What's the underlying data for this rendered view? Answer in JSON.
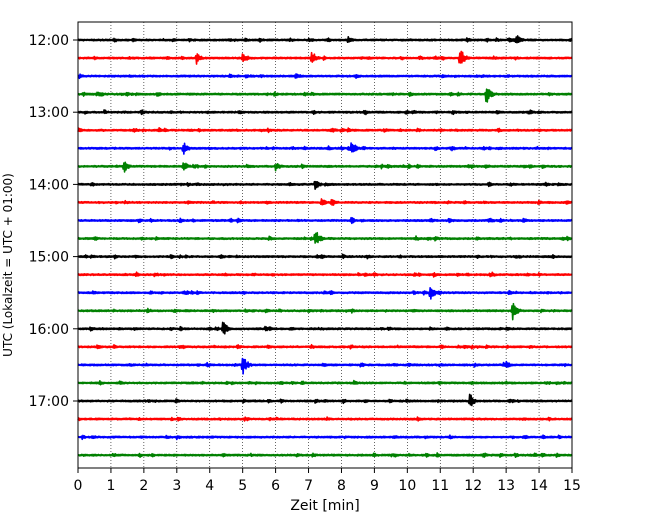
{
  "chart_data": {
    "type": "line",
    "title": "",
    "xlabel": "Zeit  [min]",
    "ylabel": "UTC (Lokalzeit = UTC + 01:00)",
    "xlim": [
      0,
      15
    ],
    "x_ticks": [
      0,
      1,
      2,
      3,
      4,
      5,
      6,
      7,
      8,
      9,
      10,
      11,
      12,
      13,
      14,
      15
    ],
    "x_tick_labels": [
      "0",
      "1",
      "2",
      "3",
      "4",
      "5",
      "6",
      "7",
      "8",
      "9",
      "10",
      "11",
      "12",
      "13",
      "14",
      "15"
    ],
    "y_tick_labels": [
      "12:00",
      "13:00",
      "14:00",
      "15:00",
      "16:00",
      "17:00"
    ],
    "grid": "x-dotted",
    "series_colors": [
      "#000000",
      "#ff0000",
      "#0000ff",
      "#008000"
    ],
    "traces": [
      {
        "start": "12:00",
        "color": "#000000",
        "events": [
          {
            "min": 13.3,
            "amp": 1.0
          },
          {
            "min": 8.2,
            "amp": 0.5
          },
          {
            "min": 1.1,
            "amp": 0.35
          }
        ]
      },
      {
        "start": "12:15",
        "color": "#ff0000",
        "events": [
          {
            "min": 11.6,
            "amp": 1.6
          },
          {
            "min": 7.1,
            "amp": 1.1
          },
          {
            "min": 3.6,
            "amp": 0.9
          },
          {
            "min": 5.0,
            "amp": 0.7
          }
        ]
      },
      {
        "start": "12:30",
        "color": "#0000ff",
        "events": [
          {
            "min": 6.6,
            "amp": 0.4
          }
        ]
      },
      {
        "start": "12:45",
        "color": "#008000",
        "events": [
          {
            "min": 12.4,
            "amp": 1.7
          }
        ]
      },
      {
        "start": "13:00",
        "color": "#000000",
        "events": [
          {
            "min": 8.7,
            "amp": 0.55
          },
          {
            "min": 0.8,
            "amp": 0.4
          }
        ]
      },
      {
        "start": "13:15",
        "color": "#ff0000",
        "events": [
          {
            "min": 1.7,
            "amp": 0.5
          },
          {
            "min": 7.7,
            "amp": 0.45
          },
          {
            "min": 8.2,
            "amp": 0.4
          }
        ]
      },
      {
        "start": "13:30",
        "color": "#0000ff",
        "events": [
          {
            "min": 8.3,
            "amp": 1.2
          },
          {
            "min": 3.2,
            "amp": 1.0
          }
        ]
      },
      {
        "start": "13:45",
        "color": "#008000",
        "events": [
          {
            "min": 1.4,
            "amp": 0.9
          },
          {
            "min": 3.2,
            "amp": 0.8
          },
          {
            "min": 6.0,
            "amp": 0.8
          }
        ]
      },
      {
        "start": "14:00",
        "color": "#000000",
        "events": [
          {
            "min": 7.2,
            "amp": 0.8
          }
        ]
      },
      {
        "start": "14:15",
        "color": "#ff0000",
        "events": [
          {
            "min": 7.4,
            "amp": 0.6
          },
          {
            "min": 7.7,
            "amp": 0.7
          }
        ]
      },
      {
        "start": "14:30",
        "color": "#0000ff",
        "events": [
          {
            "min": 8.3,
            "amp": 0.5
          },
          {
            "min": 3.1,
            "amp": 0.35
          }
        ]
      },
      {
        "start": "14:45",
        "color": "#008000",
        "events": [
          {
            "min": 7.2,
            "amp": 1.5
          }
        ]
      },
      {
        "start": "15:00",
        "color": "#000000",
        "events": [
          {
            "min": 14.4,
            "amp": 0.35
          }
        ]
      },
      {
        "start": "15:15",
        "color": "#ff0000",
        "events": [
          {
            "min": 14.0,
            "amp": 0.3
          }
        ]
      },
      {
        "start": "15:30",
        "color": "#0000ff",
        "events": [
          {
            "min": 10.7,
            "amp": 1.3
          },
          {
            "min": 2.2,
            "amp": 0.3
          }
        ]
      },
      {
        "start": "15:45",
        "color": "#008000",
        "events": [
          {
            "min": 13.2,
            "amp": 1.4
          },
          {
            "min": 2.1,
            "amp": 0.45
          },
          {
            "min": 5.7,
            "amp": 0.4
          }
        ]
      },
      {
        "start": "16:00",
        "color": "#000000",
        "events": [
          {
            "min": 4.4,
            "amp": 1.2
          },
          {
            "min": 3.1,
            "amp": 0.35
          }
        ]
      },
      {
        "start": "16:15",
        "color": "#ff0000",
        "events": [
          {
            "min": 11.8,
            "amp": 0.25
          }
        ]
      },
      {
        "start": "16:30",
        "color": "#0000ff",
        "events": [
          {
            "min": 5.0,
            "amp": 1.6
          },
          {
            "min": 13.0,
            "amp": 0.6
          }
        ]
      },
      {
        "start": "16:45",
        "color": "#008000",
        "events": [
          {
            "min": 13.0,
            "amp": 0.3
          }
        ]
      },
      {
        "start": "17:00",
        "color": "#000000",
        "events": [
          {
            "min": 11.9,
            "amp": 1.2
          }
        ]
      },
      {
        "start": "17:15",
        "color": "#ff0000",
        "events": [
          {
            "min": 14.3,
            "amp": 0.3
          }
        ]
      },
      {
        "start": "17:30",
        "color": "#0000ff",
        "events": [
          {
            "min": 8.1,
            "amp": 0.2
          }
        ]
      },
      {
        "start": "17:45",
        "color": "#008000",
        "events": [
          {
            "min": 12.3,
            "amp": 0.45
          },
          {
            "min": 10.9,
            "amp": 0.35
          }
        ]
      }
    ]
  }
}
